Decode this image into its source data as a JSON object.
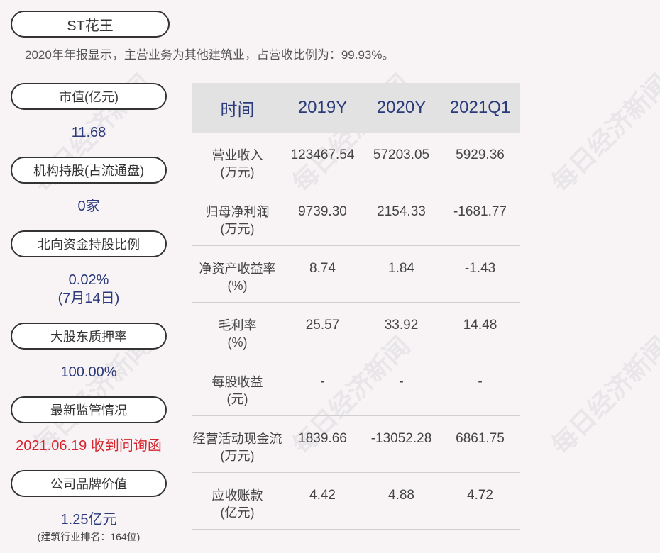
{
  "title": "ST花王",
  "subtitle": "2020年年报显示，主营业务为其他建筑业，占营收比例为：99.93%。",
  "watermark": "每日经济新闻",
  "left": {
    "market_cap": {
      "label": "市值(亿元)",
      "value": "11.68"
    },
    "institution": {
      "label": "机构持股(占流通盘)",
      "value": "0家"
    },
    "northbound": {
      "label": "北向资金持股比例",
      "value": "0.02%",
      "date": "(7月14日)"
    },
    "pledge": {
      "label": "大股东质押率",
      "value": "100.00%"
    },
    "regulation": {
      "label": "最新监管情况",
      "value": "2021.06.19 收到问询函"
    },
    "brand": {
      "label": "公司品牌价值",
      "value": "1.25亿元",
      "note": "(建筑行业排名：164位)"
    }
  },
  "table": {
    "headers": [
      "时间",
      "2019Y",
      "2020Y",
      "2021Q1"
    ],
    "rows": [
      {
        "label": "营业收入",
        "unit": "(万元)",
        "values": [
          "123467.54",
          "57203.05",
          "5929.36"
        ]
      },
      {
        "label": "归母净利润",
        "unit": "(万元)",
        "values": [
          "9739.30",
          "2154.33",
          "-1681.77"
        ]
      },
      {
        "label": "净资产收益率",
        "unit": "(%)",
        "values": [
          "8.74",
          "1.84",
          "-1.43"
        ]
      },
      {
        "label": "毛利率",
        "unit": "(%)",
        "values": [
          "25.57",
          "33.92",
          "14.48"
        ]
      },
      {
        "label": "每股收益",
        "unit": "(元)",
        "values": [
          "-",
          "-",
          "-"
        ]
      },
      {
        "label": "经营活动现金流",
        "unit": "(万元)",
        "values": [
          "1839.66",
          "-13052.28",
          "6861.75"
        ]
      },
      {
        "label": "应收账款",
        "unit": "(亿元)",
        "values": [
          "4.42",
          "4.88",
          "4.72"
        ]
      }
    ]
  }
}
